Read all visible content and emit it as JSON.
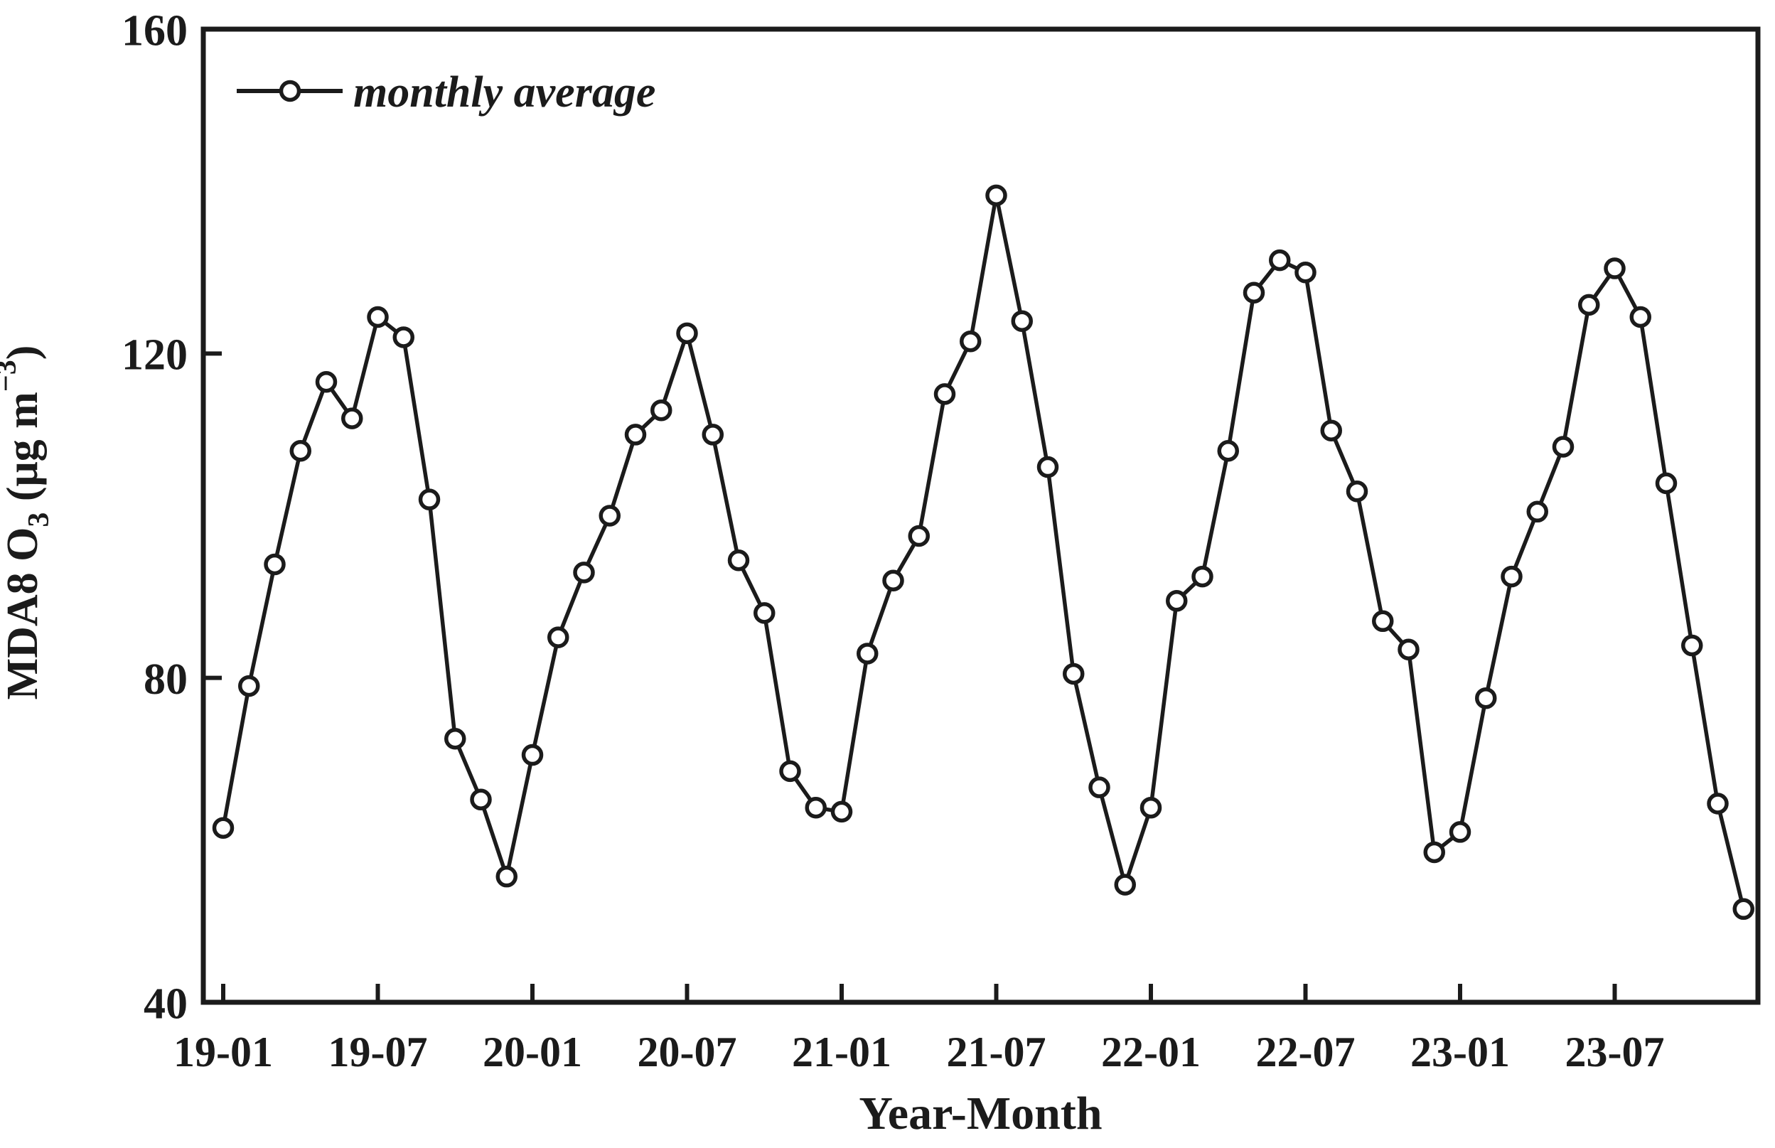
{
  "figure": {
    "background": "#ffffff",
    "ink_color": "#1b1b1b"
  },
  "chart_data": {
    "type": "line",
    "title": "",
    "xlabel": "Year-Month",
    "ylabel": "MDA8 O3 (μg m−3)",
    "ylabel_parts": [
      {
        "text": "MDA8 O",
        "style": "normal"
      },
      {
        "text": "3",
        "style": "sub"
      },
      {
        "text": " (μg m",
        "style": "normal"
      },
      {
        "text": "−3",
        "style": "sup"
      },
      {
        "text": ")",
        "style": "normal"
      }
    ],
    "ylim": [
      40,
      160
    ],
    "y_ticks": [
      40,
      80,
      120,
      160
    ],
    "y_tick_labels": [
      "40",
      "80",
      "120",
      "160"
    ],
    "x_tick_month_indices": [
      0,
      6,
      12,
      18,
      24,
      30,
      36,
      42,
      48,
      54
    ],
    "x_tick_labels": [
      "19-01",
      "19-07",
      "20-01",
      "20-07",
      "21-01",
      "21-07",
      "22-01",
      "22-07",
      "23-01",
      "23-07"
    ],
    "grid": false,
    "legend_position": "top-left",
    "marker": "open-circle",
    "line_color": "#1b1b1b",
    "marker_fill": "#ffffff",
    "categories": [
      "19-01",
      "19-02",
      "19-03",
      "19-04",
      "19-05",
      "19-06",
      "19-07",
      "19-08",
      "19-09",
      "19-10",
      "19-11",
      "19-12",
      "20-01",
      "20-02",
      "20-03",
      "20-04",
      "20-05",
      "20-06",
      "20-07",
      "20-08",
      "20-09",
      "20-10",
      "20-11",
      "20-12",
      "21-01",
      "21-02",
      "21-03",
      "21-04",
      "21-05",
      "21-06",
      "21-07",
      "21-08",
      "21-09",
      "21-10",
      "21-11",
      "21-12",
      "22-01",
      "22-02",
      "22-03",
      "22-04",
      "22-05",
      "22-06",
      "22-07",
      "22-08",
      "22-09",
      "22-10",
      "22-11",
      "22-12",
      "23-01",
      "23-02",
      "23-03",
      "23-04",
      "23-05",
      "23-06",
      "23-07",
      "23-08",
      "23-09",
      "23-10",
      "23-11",
      "23-12"
    ],
    "series": [
      {
        "name": "monthly average",
        "values": [
          61.5,
          79,
          94,
          108,
          116.5,
          112,
          124.5,
          122,
          102,
          72.5,
          65,
          55.5,
          70.5,
          85,
          93,
          100,
          110,
          113,
          122.5,
          110,
          94.5,
          88,
          68.5,
          64,
          63.5,
          83,
          92,
          97.5,
          115,
          121.5,
          139.5,
          124,
          106,
          80.5,
          66.5,
          54.5,
          64,
          89.5,
          92.5,
          108,
          127.5,
          131.5,
          130,
          110.5,
          103,
          87,
          83.5,
          58.5,
          61,
          77.5,
          92.5,
          100.5,
          108.5,
          126,
          130.5,
          124.5,
          104,
          84,
          64.5,
          51.5
        ]
      }
    ]
  }
}
